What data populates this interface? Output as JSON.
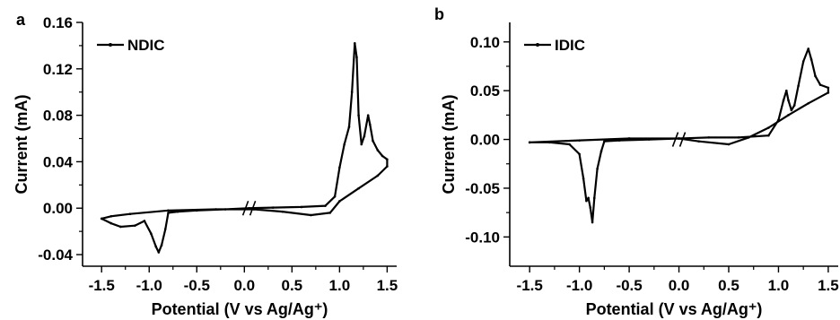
{
  "chart_data": [
    {
      "type": "line",
      "panel_label": "a",
      "xlabel": "Potential (V vs Ag/Ag⁺)",
      "ylabel": "Current (mA)",
      "xlim": [
        -1.7,
        1.6
      ],
      "ylim": [
        -0.05,
        0.16
      ],
      "xticks": [
        -1.5,
        -1.0,
        -0.5,
        0.0,
        0.5,
        1.0,
        1.5
      ],
      "xtick_labels": [
        "-1.5",
        "-1.0",
        "-0.5",
        "0.0",
        "0.5",
        "1.0",
        "1.5"
      ],
      "yticks": [
        -0.04,
        0.0,
        0.04,
        0.08,
        0.12,
        0.16
      ],
      "ytick_labels": [
        "-0.04",
        "0.00",
        "0.04",
        "0.08",
        "0.12",
        "0.16"
      ],
      "axis_break_x": 0.05,
      "legend_position": "top-left",
      "series": [
        {
          "name": "NDIC",
          "color": "#000000",
          "x": [
            -1.5,
            -1.4,
            -1.3,
            -1.15,
            -1.05,
            -0.98,
            -0.93,
            -0.9,
            -0.87,
            -0.83,
            -0.8,
            -0.7,
            -0.5,
            -0.2,
            0.05,
            0.3,
            0.6,
            0.85,
            0.95,
            1.0,
            1.05,
            1.1,
            1.13,
            1.16,
            1.18,
            1.2,
            1.23,
            1.26,
            1.3,
            1.32,
            1.35,
            1.4,
            1.45,
            1.5,
            1.5,
            1.4,
            1.2,
            1.0,
            0.9,
            0.7,
            0.4,
            0.1,
            -0.3,
            -0.8,
            -1.2,
            -1.4,
            -1.5
          ],
          "y": [
            -0.009,
            -0.013,
            -0.016,
            -0.015,
            -0.011,
            -0.022,
            -0.033,
            -0.038,
            -0.032,
            -0.018,
            -0.004,
            -0.003,
            -0.002,
            -0.001,
            0.0,
            0.0005,
            0.001,
            0.002,
            0.01,
            0.035,
            0.055,
            0.07,
            0.1,
            0.142,
            0.13,
            0.08,
            0.055,
            0.062,
            0.08,
            0.072,
            0.058,
            0.05,
            0.045,
            0.042,
            0.036,
            0.028,
            0.017,
            0.006,
            -0.004,
            -0.006,
            -0.003,
            -0.001,
            -0.001,
            -0.002,
            -0.005,
            -0.007,
            -0.009
          ]
        }
      ]
    },
    {
      "type": "line",
      "panel_label": "b",
      "xlabel": "Potential (V vs Ag/Ag⁺)",
      "ylabel": "Current (mA)",
      "xlim": [
        -1.7,
        1.6
      ],
      "ylim": [
        -0.13,
        0.12
      ],
      "xticks": [
        -1.5,
        -1.0,
        -0.5,
        0.0,
        0.5,
        1.0,
        1.5
      ],
      "xtick_labels": [
        "-1.5",
        "-1.0",
        "-0.5",
        "0.0",
        "0.5",
        "1.0",
        "1.5"
      ],
      "yticks": [
        -0.1,
        -0.05,
        0.0,
        0.05,
        0.1
      ],
      "ytick_labels": [
        "-0.10",
        "-0.05",
        "0.00",
        "0.05",
        "0.10"
      ],
      "axis_break_x": 0.0,
      "legend_position": "top-left",
      "series": [
        {
          "name": "IDIC",
          "color": "#000000",
          "x": [
            -1.5,
            -1.3,
            -1.1,
            -1.0,
            -0.96,
            -0.93,
            -0.91,
            -0.89,
            -0.87,
            -0.85,
            -0.82,
            -0.78,
            -0.75,
            -0.6,
            -0.3,
            0.0,
            0.3,
            0.6,
            0.9,
            1.0,
            1.05,
            1.08,
            1.1,
            1.13,
            1.16,
            1.2,
            1.25,
            1.3,
            1.33,
            1.37,
            1.42,
            1.5,
            1.5,
            1.3,
            1.1,
            0.9,
            0.7,
            0.5,
            0.2,
            0.0,
            -0.5,
            -1.0,
            -1.5
          ],
          "y": [
            -0.003,
            -0.003,
            -0.005,
            -0.015,
            -0.04,
            -0.063,
            -0.06,
            -0.07,
            -0.085,
            -0.06,
            -0.03,
            -0.012,
            -0.002,
            -0.001,
            0.0,
            0.001,
            0.002,
            0.002,
            0.004,
            0.02,
            0.04,
            0.05,
            0.04,
            0.03,
            0.035,
            0.055,
            0.08,
            0.093,
            0.082,
            0.065,
            0.056,
            0.053,
            0.048,
            0.037,
            0.025,
            0.012,
            0.002,
            -0.005,
            -0.002,
            0.001,
            0.001,
            -0.001,
            -0.003
          ]
        }
      ]
    }
  ]
}
